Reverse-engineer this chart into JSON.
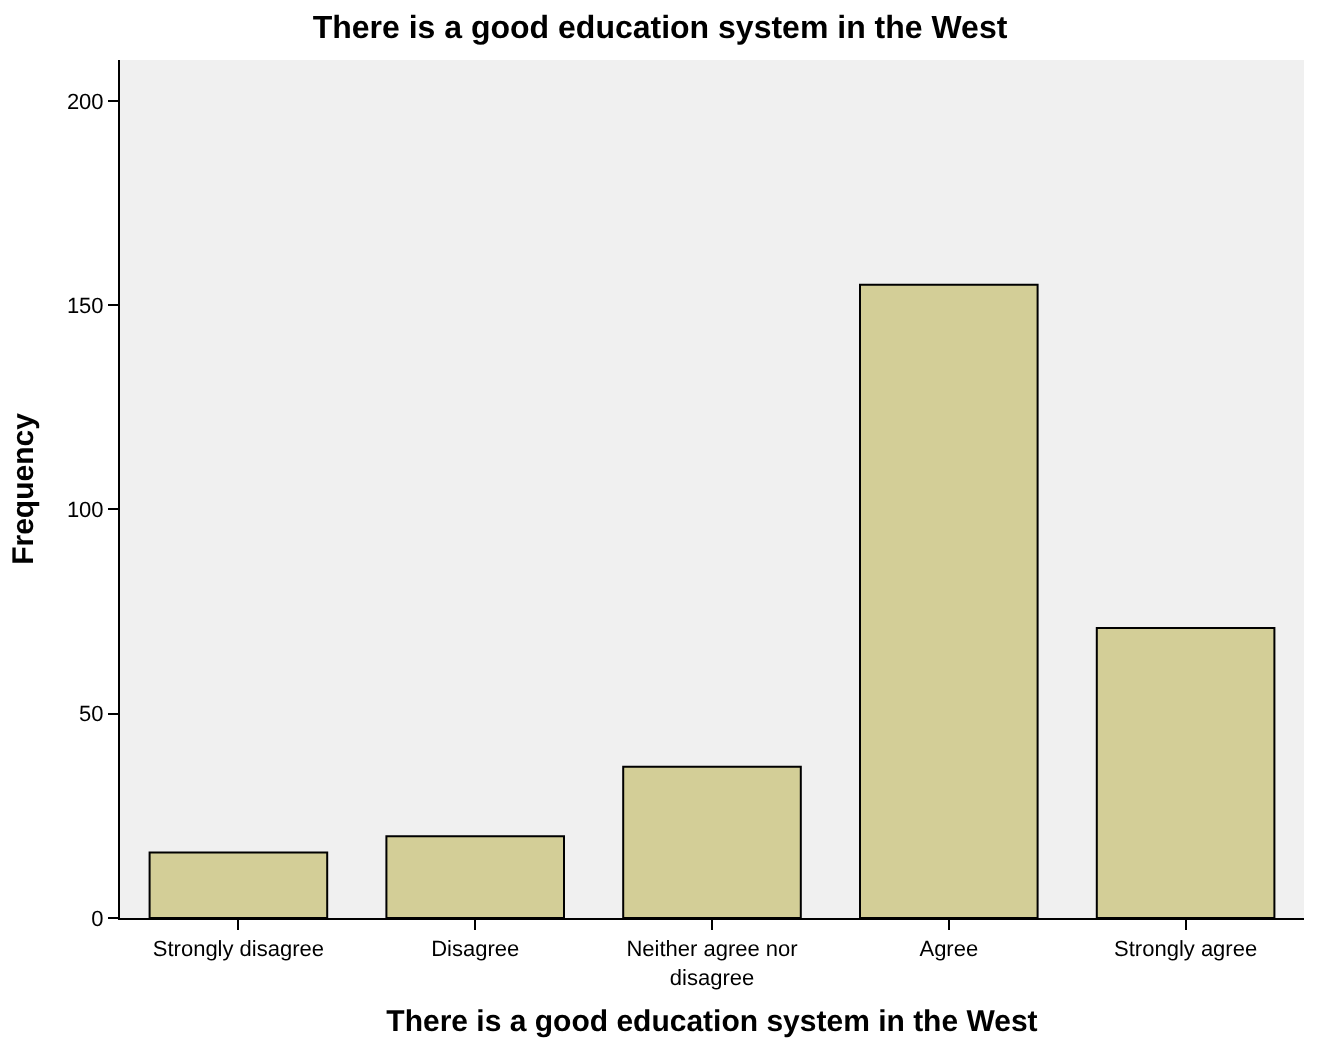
{
  "chart_data": {
    "type": "bar",
    "title": "There is a good education system in the West",
    "xlabel": "There is a good education system in the West",
    "ylabel": "Frequency",
    "categories": [
      "Strongly disagree",
      "Disagree",
      "Neither agree nor disagree",
      "Agree",
      "Strongly agree"
    ],
    "values": [
      16,
      20,
      37,
      155,
      71
    ],
    "color": "#d3ce97",
    "ylim": [
      0,
      210
    ],
    "yticks": [
      0,
      50,
      100,
      150,
      200
    ],
    "grid": false
  }
}
